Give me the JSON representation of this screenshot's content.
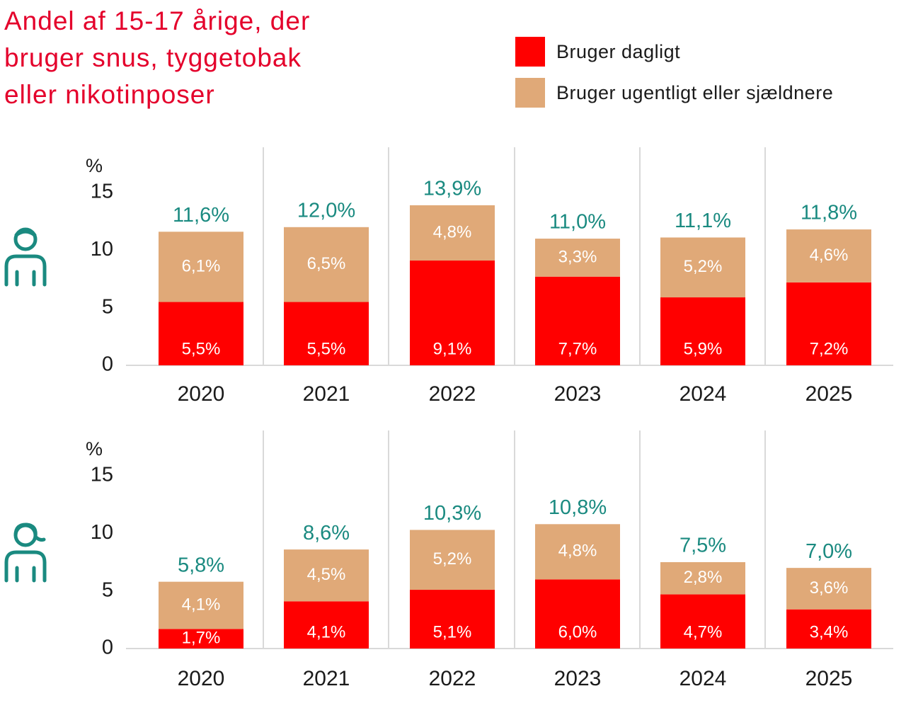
{
  "title": {
    "lines": [
      "Andel af 15-17 årige, der",
      "bruger snus, tyggetobak",
      "eller nikotinposer"
    ]
  },
  "legend": [
    {
      "label": "Bruger dagligt",
      "color": "#ff0000"
    },
    {
      "label": "Bruger ugentligt eller sjældnere",
      "color": "#e0a978"
    }
  ],
  "colors": {
    "daily": "#ff0000",
    "weekly": "#e0a978",
    "total_label": "#1a8a80",
    "title": "#e4002b",
    "segment_label": "#ffffff",
    "axis_text": "#1a1a1a",
    "grid": "#d9d9d9"
  },
  "chart_data": [
    {
      "type": "bar",
      "stacked": true,
      "panel_icon": "boy-icon",
      "categories": [
        "2020",
        "2021",
        "2022",
        "2023",
        "2024",
        "2025"
      ],
      "series": [
        {
          "name": "Bruger dagligt",
          "values": [
            5.5,
            5.5,
            9.1,
            7.7,
            5.9,
            7.2
          ],
          "labels": [
            "5,5%",
            "5,5%",
            "9,1%",
            "7,7%",
            "5,9%",
            "7,2%"
          ]
        },
        {
          "name": "Bruger ugentligt eller sjældnere",
          "values": [
            6.1,
            6.5,
            4.8,
            3.3,
            5.2,
            4.6
          ],
          "labels": [
            "6,1%",
            "6,5%",
            "4,8%",
            "3,3%",
            "5,2%",
            "4,6%"
          ]
        }
      ],
      "totals": [
        11.6,
        12.0,
        13.9,
        11.0,
        11.1,
        11.8
      ],
      "total_labels": [
        "11,6%",
        "12,0%",
        "13,9%",
        "11,0%",
        "11,1%",
        "11,8%"
      ],
      "ylabel": "%",
      "ylim": [
        0,
        15
      ],
      "yticks": [
        0,
        5,
        10,
        15
      ],
      "grid": "vertical separators"
    },
    {
      "type": "bar",
      "stacked": true,
      "panel_icon": "girl-icon",
      "categories": [
        "2020",
        "2021",
        "2022",
        "2023",
        "2024",
        "2025"
      ],
      "series": [
        {
          "name": "Bruger dagligt",
          "values": [
            1.7,
            4.1,
            5.1,
            6.0,
            4.7,
            3.4
          ],
          "labels": [
            "1,7%",
            "4,1%",
            "5,1%",
            "6,0%",
            "4,7%",
            "3,4%"
          ]
        },
        {
          "name": "Bruger ugentligt eller sjældnere",
          "values": [
            4.1,
            4.5,
            5.2,
            4.8,
            2.8,
            3.6
          ],
          "labels": [
            "4,1%",
            "4,5%",
            "5,2%",
            "4,8%",
            "2,8%",
            "3,6%"
          ]
        }
      ],
      "totals": [
        5.8,
        8.6,
        10.3,
        10.8,
        7.5,
        7.0
      ],
      "total_labels": [
        "5,8%",
        "8,6%",
        "10,3%",
        "10,8%",
        "7,5%",
        "7,0%"
      ],
      "ylabel": "%",
      "ylim": [
        0,
        15
      ],
      "yticks": [
        0,
        5,
        10,
        15
      ],
      "grid": "vertical separators"
    }
  ]
}
